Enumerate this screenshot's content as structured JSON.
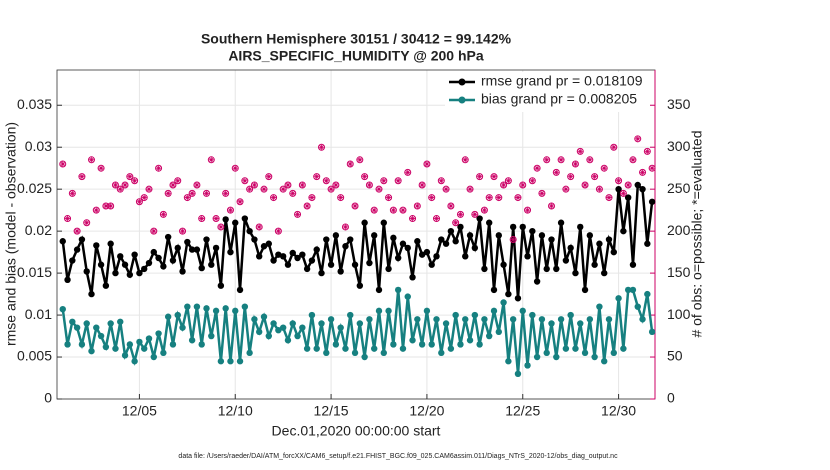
{
  "chart_data": {
    "type": "line",
    "title": "Southern Hemisphere 30151 / 30412 = 99.142%",
    "subtitle": "AIRS_SPECIFIC_HUMIDITY @ 200 hPa",
    "x_label": "Dec.01,2020 00:00:00 start",
    "y_label": "rmse and bias (model - observation)",
    "y2_label": "# of obs: o=possible; *=evaluated",
    "footnote": "data file: /Users/raeder/DAI/ATM_forcXX/CAM6_setup/f.e21.FHIST_BGC.f09_025.CAM6assim.011/Diags_NTrS_2020-12/obs_diag_output.nc",
    "xlim": [
      0.7,
      31.9
    ],
    "xticks": [
      {
        "value": 5,
        "label": "12/05"
      },
      {
        "value": 10,
        "label": "12/10"
      },
      {
        "value": 15,
        "label": "12/15"
      },
      {
        "value": 20,
        "label": "12/20"
      },
      {
        "value": 25,
        "label": "12/25"
      },
      {
        "value": 30,
        "label": "12/30"
      }
    ],
    "ylim": [
      0,
      0.0392
    ],
    "yticks": [
      0,
      0.005,
      0.01,
      0.015,
      0.02,
      0.025,
      0.03,
      0.035
    ],
    "y2lim": [
      0,
      392
    ],
    "y2ticks": [
      0,
      50,
      100,
      150,
      200,
      250,
      300,
      350
    ],
    "grid": true,
    "legend": "upper right",
    "x": [
      1,
      1.25,
      1.5,
      1.75,
      2,
      2.25,
      2.5,
      2.75,
      3,
      3.25,
      3.5,
      3.75,
      4,
      4.25,
      4.5,
      4.75,
      5,
      5.25,
      5.5,
      5.75,
      6,
      6.25,
      6.5,
      6.75,
      7,
      7.25,
      7.5,
      7.75,
      8,
      8.25,
      8.5,
      8.75,
      9,
      9.25,
      9.5,
      9.75,
      10,
      10.25,
      10.5,
      10.75,
      11,
      11.25,
      11.5,
      11.75,
      12,
      12.25,
      12.5,
      12.75,
      13,
      13.25,
      13.5,
      13.75,
      14,
      14.25,
      14.5,
      14.75,
      15,
      15.25,
      15.5,
      15.75,
      16,
      16.25,
      16.5,
      16.75,
      17,
      17.25,
      17.5,
      17.75,
      18,
      18.25,
      18.5,
      18.75,
      19,
      19.25,
      19.5,
      19.75,
      20,
      20.25,
      20.5,
      20.75,
      21,
      21.25,
      21.5,
      21.75,
      22,
      22.25,
      22.5,
      22.75,
      23,
      23.25,
      23.5,
      23.75,
      24,
      24.25,
      24.5,
      24.75,
      25,
      25.25,
      25.5,
      25.75,
      26,
      26.25,
      26.5,
      26.75,
      27,
      27.25,
      27.5,
      27.75,
      28,
      28.25,
      28.5,
      28.75,
      29,
      29.25,
      29.5,
      29.75,
      30,
      30.25,
      30.5,
      30.75,
      31,
      31.25,
      31.5,
      31.75
    ],
    "series": [
      {
        "name": "rmse grand pr = 0.018109",
        "color": "#000000",
        "marker": "filled",
        "values": [
          0.0188,
          0.0142,
          0.0165,
          0.0178,
          0.019,
          0.0152,
          0.0125,
          0.0183,
          0.016,
          0.0135,
          0.0185,
          0.015,
          0.017,
          0.016,
          0.0148,
          0.0172,
          0.015,
          0.0155,
          0.0162,
          0.0175,
          0.0168,
          0.0158,
          0.0193,
          0.0165,
          0.018,
          0.0152,
          0.0187,
          0.0178,
          0.0178,
          0.0156,
          0.019,
          0.016,
          0.018,
          0.0135,
          0.0214,
          0.0175,
          0.021,
          0.013,
          0.0215,
          0.02,
          0.019,
          0.017,
          0.0182,
          0.0185,
          0.0165,
          0.0172,
          0.017,
          0.016,
          0.0174,
          0.0168,
          0.0172,
          0.0155,
          0.0165,
          0.0178,
          0.015,
          0.019,
          0.016,
          0.0195,
          0.0152,
          0.0182,
          0.019,
          0.016,
          0.0135,
          0.021,
          0.0162,
          0.0195,
          0.013,
          0.021,
          0.0155,
          0.0192,
          0.0168,
          0.0185,
          0.018,
          0.0145,
          0.0188,
          0.0172,
          0.0175,
          0.016,
          0.017,
          0.019,
          0.0185,
          0.02,
          0.0188,
          0.0205,
          0.017,
          0.0195,
          0.018,
          0.0215,
          0.0155,
          0.021,
          0.013,
          0.0195,
          0.016,
          0.0125,
          0.0205,
          0.012,
          0.0205,
          0.017,
          0.02,
          0.014,
          0.0195,
          0.0155,
          0.019,
          0.0155,
          0.021,
          0.0165,
          0.018,
          0.015,
          0.0205,
          0.013,
          0.0195,
          0.016,
          0.0185,
          0.015,
          0.019,
          0.0175,
          0.025,
          0.02,
          0.024,
          0.016,
          0.0255,
          0.025,
          0.0185,
          0.0235
        ]
      },
      {
        "name": "bias grand pr = 0.008205",
        "color": "#168080",
        "marker": "filled",
        "values": [
          0.0107,
          0.0065,
          0.0092,
          0.0085,
          0.0065,
          0.009,
          0.0057,
          0.0085,
          0.0075,
          0.0062,
          0.009,
          0.006,
          0.0092,
          0.0052,
          0.0065,
          0.0045,
          0.0068,
          0.006,
          0.0072,
          0.005,
          0.0078,
          0.0055,
          0.0098,
          0.0065,
          0.01,
          0.0085,
          0.011,
          0.007,
          0.011,
          0.0065,
          0.0108,
          0.0075,
          0.0105,
          0.0045,
          0.0108,
          0.0045,
          0.0105,
          0.0045,
          0.011,
          0.0055,
          0.0095,
          0.008,
          0.0098,
          0.0075,
          0.009,
          0.0082,
          0.0085,
          0.007,
          0.009,
          0.0075,
          0.0085,
          0.006,
          0.01,
          0.006,
          0.009,
          0.0055,
          0.0095,
          0.0065,
          0.0085,
          0.006,
          0.01,
          0.0055,
          0.009,
          0.005,
          0.0095,
          0.006,
          0.0105,
          0.0055,
          0.0105,
          0.0065,
          0.013,
          0.006,
          0.0122,
          0.007,
          0.0095,
          0.0065,
          0.0105,
          0.0065,
          0.0095,
          0.0055,
          0.009,
          0.006,
          0.01,
          0.0065,
          0.0095,
          0.007,
          0.01,
          0.0065,
          0.0095,
          0.0075,
          0.0105,
          0.008,
          0.0115,
          0.0045,
          0.0095,
          0.003,
          0.0105,
          0.004,
          0.01,
          0.005,
          0.0095,
          0.0055,
          0.009,
          0.005,
          0.0095,
          0.006,
          0.01,
          0.006,
          0.009,
          0.0055,
          0.0095,
          0.005,
          0.011,
          0.0045,
          0.0095,
          0.0055,
          0.012,
          0.006,
          0.013,
          0.013,
          0.011,
          0.0095,
          0.0125,
          0.008
        ]
      },
      {
        "name": "possible",
        "color": "#cc0066",
        "marker": "circle",
        "axis": "y2",
        "values": [
          280,
          215,
          245,
          200,
          265,
          210,
          285,
          225,
          275,
          230,
          230,
          255,
          250,
          255,
          265,
          260,
          235,
          240,
          250,
          200,
          275,
          220,
          245,
          255,
          260,
          200,
          240,
          245,
          255,
          215,
          245,
          285,
          215,
          205,
          245,
          225,
          275,
          235,
          260,
          250,
          255,
          205,
          250,
          265,
          240,
          200,
          250,
          255,
          245,
          220,
          255,
          230,
          240,
          265,
          300,
          260,
          250,
          255,
          240,
          205,
          280,
          230,
          285,
          265,
          255,
          225,
          250,
          260,
          240,
          225,
          260,
          225,
          270,
          215,
          230,
          255,
          280,
          240,
          215,
          260,
          250,
          230,
          210,
          220,
          285,
          250,
          220,
          265,
          225,
          240,
          265,
          240,
          255,
          260,
          190,
          240,
          255,
          225,
          260,
          275,
          245,
          285,
          230,
          270,
          285,
          250,
          265,
          280,
          295,
          255,
          285,
          265,
          250,
          275,
          240,
          300,
          260,
          245,
          255,
          285,
          310,
          270,
          295,
          275
        ]
      },
      {
        "name": "evaluated",
        "color": "#cc0066",
        "marker": "asterisk",
        "axis": "y2",
        "values": [
          280,
          215,
          245,
          200,
          265,
          210,
          285,
          225,
          275,
          230,
          230,
          255,
          250,
          255,
          265,
          260,
          235,
          240,
          250,
          200,
          275,
          220,
          245,
          255,
          260,
          200,
          240,
          245,
          255,
          215,
          245,
          285,
          215,
          205,
          245,
          225,
          275,
          235,
          260,
          250,
          255,
          205,
          250,
          265,
          240,
          200,
          250,
          255,
          245,
          220,
          255,
          230,
          240,
          265,
          300,
          260,
          250,
          255,
          240,
          205,
          280,
          230,
          285,
          265,
          255,
          225,
          250,
          260,
          240,
          225,
          260,
          225,
          270,
          215,
          230,
          255,
          280,
          240,
          215,
          260,
          250,
          230,
          210,
          220,
          285,
          250,
          220,
          265,
          225,
          240,
          265,
          240,
          255,
          260,
          190,
          240,
          255,
          225,
          260,
          275,
          245,
          285,
          230,
          270,
          285,
          250,
          265,
          280,
          295,
          255,
          285,
          265,
          250,
          275,
          240,
          300,
          260,
          245,
          255,
          285,
          310,
          270,
          295,
          275
        ]
      }
    ]
  }
}
